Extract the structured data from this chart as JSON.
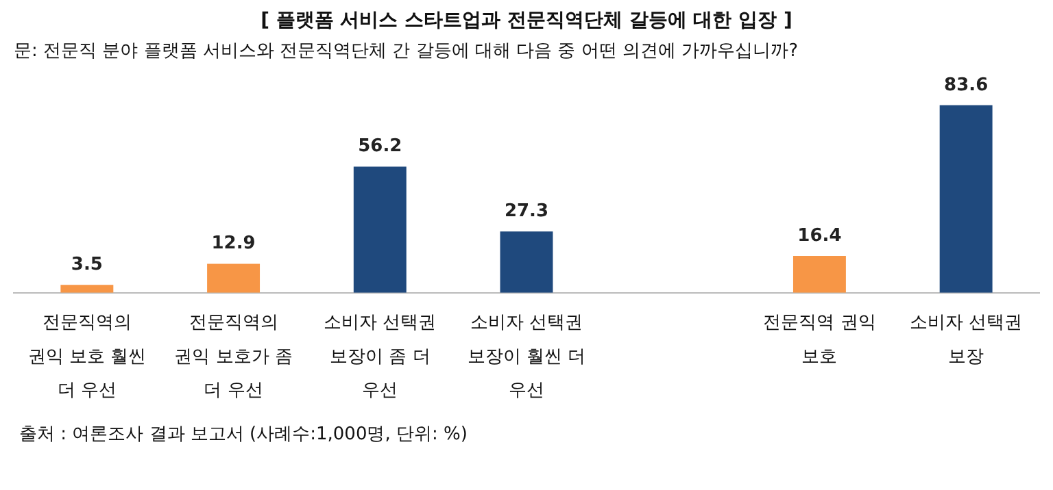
{
  "chart_data": {
    "type": "bar",
    "title": "[ 플랫폼 서비스 스타트업과 전문직역단체 갈등에 대한 입장 ]",
    "subtitle": "문: 전문직 분야 플랫폼 서비스와 전문직역단체 간 갈등에 대해 다음 중 어떤 의견에 가까우십니까?",
    "categories": [
      "전문직역의 권익 보호 훨씬 더 우선",
      "전문직역의 권익 보호가 좀 더 우선",
      "소비자 선택권 보장이 좀 더 우선",
      "소비자 선택권 보장이 훨씬 더 우선",
      null,
      "전문직역 권익 보호",
      "소비자 선택권 보장"
    ],
    "values": [
      3.5,
      12.9,
      56.2,
      27.3,
      null,
      16.4,
      83.6
    ],
    "colors": [
      "#f79646",
      "#f79646",
      "#1f497d",
      "#1f497d",
      null,
      "#f79646",
      "#1f497d"
    ],
    "data_labels": true,
    "grid": false,
    "legend": false,
    "annotations": [
      "출처 : 여론조사 결과 보고서 (사례수:1,000명, 단위: %)"
    ]
  }
}
